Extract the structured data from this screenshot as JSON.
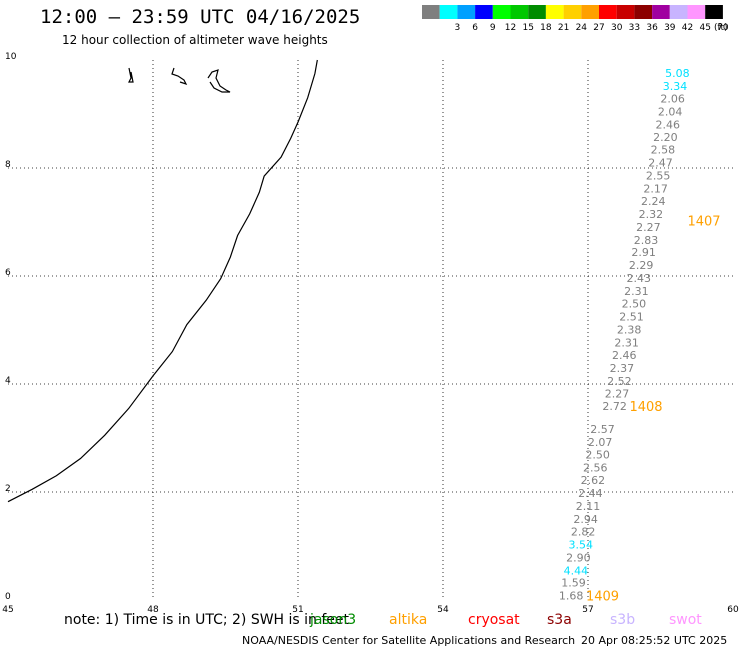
{
  "header": {
    "title": "12:00 – 23:59 UTC 04/16/2025",
    "subtitle": "12 hour collection of altimeter wave heights"
  },
  "legend": {
    "unit": "(ft)",
    "swatches": [
      {
        "color": "#7f7f7f",
        "label": ""
      },
      {
        "color": "#00ffff",
        "label": "3"
      },
      {
        "color": "#00a0ff",
        "label": "6"
      },
      {
        "color": "#0000ff",
        "label": "9"
      },
      {
        "color": "#00ff00",
        "label": "12"
      },
      {
        "color": "#00c800",
        "label": "15"
      },
      {
        "color": "#008c00",
        "label": "18"
      },
      {
        "color": "#ffff00",
        "label": "21"
      },
      {
        "color": "#ffd000",
        "label": "24"
      },
      {
        "color": "#ffa000",
        "label": "27"
      },
      {
        "color": "#ff0000",
        "label": "30"
      },
      {
        "color": "#c80000",
        "label": "33"
      },
      {
        "color": "#8c0000",
        "label": "36"
      },
      {
        "color": "#a000a0",
        "label": "39"
      },
      {
        "color": "#c8b4ff",
        "label": "42"
      },
      {
        "color": "#ff96ff",
        "label": "45"
      },
      {
        "color": "#000000",
        "label": "70"
      }
    ]
  },
  "note": "note: 1) Time is in UTC; 2) SWH is in feet",
  "satellites": [
    {
      "name": "jason3",
      "color": "#008c00"
    },
    {
      "name": "altika",
      "color": "#ffa000"
    },
    {
      "name": "cryosat",
      "color": "#ff0000"
    },
    {
      "name": "s3a",
      "color": "#8c0000"
    },
    {
      "name": "s3b",
      "color": "#c8b4ff"
    },
    {
      "name": "swot",
      "color": "#ff96ff"
    }
  ],
  "footer": {
    "credit": "NOAA/NESDIS Center for Satellite Applications and Research",
    "timestamp": "20 Apr 08:25:52 UTC 2025"
  },
  "chart_data": {
    "type": "scatter",
    "xlim": [
      45,
      60
    ],
    "ylim": [
      0,
      10
    ],
    "x_ticks": [
      "45",
      "48",
      "51",
      "54",
      "57",
      "60"
    ],
    "y_ticks": [
      "0",
      "2",
      "4",
      "6",
      "8",
      "10"
    ],
    "grid": true,
    "colors": {
      "gray": "#7f7f7f",
      "cyan": "#00e0ff",
      "orange": "#ffa000"
    },
    "track": [
      {
        "x": 58.85,
        "y": 9.76,
        "value": "5.08",
        "color": "cyan"
      },
      {
        "x": 58.8,
        "y": 9.52,
        "value": "3.34",
        "color": "cyan"
      },
      {
        "x": 58.75,
        "y": 9.29,
        "value": "2.06",
        "color": "gray"
      },
      {
        "x": 58.7,
        "y": 9.05,
        "value": "2.04",
        "color": "gray"
      },
      {
        "x": 58.65,
        "y": 8.81,
        "value": "2.46",
        "color": "gray"
      },
      {
        "x": 58.6,
        "y": 8.57,
        "value": "2.20",
        "color": "gray"
      },
      {
        "x": 58.55,
        "y": 8.34,
        "value": "2.58",
        "color": "gray"
      },
      {
        "x": 58.5,
        "y": 8.1,
        "value": "2.47",
        "color": "gray"
      },
      {
        "x": 58.45,
        "y": 7.86,
        "value": "2.55",
        "color": "gray"
      },
      {
        "x": 58.4,
        "y": 7.62,
        "value": "2.17",
        "color": "gray"
      },
      {
        "x": 58.35,
        "y": 7.39,
        "value": "2.24",
        "color": "gray"
      },
      {
        "x": 58.3,
        "y": 7.15,
        "value": "2.32",
        "color": "gray"
      },
      {
        "x": 58.25,
        "y": 6.91,
        "value": "2.27",
        "color": "gray"
      },
      {
        "x": 58.2,
        "y": 6.67,
        "value": "2.83",
        "color": "gray"
      },
      {
        "x": 58.15,
        "y": 6.44,
        "value": "2.91",
        "color": "gray"
      },
      {
        "x": 58.1,
        "y": 6.2,
        "value": "2.29",
        "color": "gray"
      },
      {
        "x": 58.05,
        "y": 5.96,
        "value": "2.43",
        "color": "gray"
      },
      {
        "x": 58.0,
        "y": 5.72,
        "value": "2.31",
        "color": "gray"
      },
      {
        "x": 57.95,
        "y": 5.49,
        "value": "2.50",
        "color": "gray"
      },
      {
        "x": 57.9,
        "y": 5.25,
        "value": "2.51",
        "color": "gray"
      },
      {
        "x": 57.85,
        "y": 5.01,
        "value": "2.38",
        "color": "gray"
      },
      {
        "x": 57.8,
        "y": 4.77,
        "value": "2.31",
        "color": "gray"
      },
      {
        "x": 57.75,
        "y": 4.54,
        "value": "2.46",
        "color": "gray"
      },
      {
        "x": 57.7,
        "y": 4.3,
        "value": "2.37",
        "color": "gray"
      },
      {
        "x": 57.65,
        "y": 4.06,
        "value": "2.52",
        "color": "gray"
      },
      {
        "x": 57.6,
        "y": 3.82,
        "value": "2.27",
        "color": "gray"
      },
      {
        "x": 57.55,
        "y": 3.59,
        "value": "2.72",
        "color": "gray"
      },
      {
        "x": 57.3,
        "y": 3.17,
        "value": "2.57",
        "color": "gray"
      },
      {
        "x": 57.25,
        "y": 2.93,
        "value": "2.07",
        "color": "gray"
      },
      {
        "x": 57.2,
        "y": 2.69,
        "value": "2.50",
        "color": "gray"
      },
      {
        "x": 57.15,
        "y": 2.45,
        "value": "2.56",
        "color": "gray"
      },
      {
        "x": 57.1,
        "y": 2.22,
        "value": "2.62",
        "color": "gray"
      },
      {
        "x": 57.05,
        "y": 1.98,
        "value": "2.44",
        "color": "gray"
      },
      {
        "x": 57.0,
        "y": 1.74,
        "value": "2.11",
        "color": "gray"
      },
      {
        "x": 56.95,
        "y": 1.5,
        "value": "2.94",
        "color": "gray"
      },
      {
        "x": 56.9,
        "y": 1.27,
        "value": "2.82",
        "color": "gray"
      },
      {
        "x": 56.85,
        "y": 1.03,
        "value": "3.54",
        "color": "cyan"
      },
      {
        "x": 56.8,
        "y": 0.79,
        "value": "2.90",
        "color": "gray"
      },
      {
        "x": 56.75,
        "y": 0.55,
        "value": "4.44",
        "color": "cyan"
      },
      {
        "x": 56.7,
        "y": 0.32,
        "value": "1.59",
        "color": "gray"
      },
      {
        "x": 56.65,
        "y": 0.08,
        "value": "1.68",
        "color": "gray"
      }
    ],
    "time_labels": [
      {
        "x": 59.4,
        "y": 7.03,
        "text": "1407"
      },
      {
        "x": 58.2,
        "y": 3.59,
        "text": "1408"
      },
      {
        "x": 57.3,
        "y": 0.08,
        "text": "1409"
      }
    ]
  }
}
